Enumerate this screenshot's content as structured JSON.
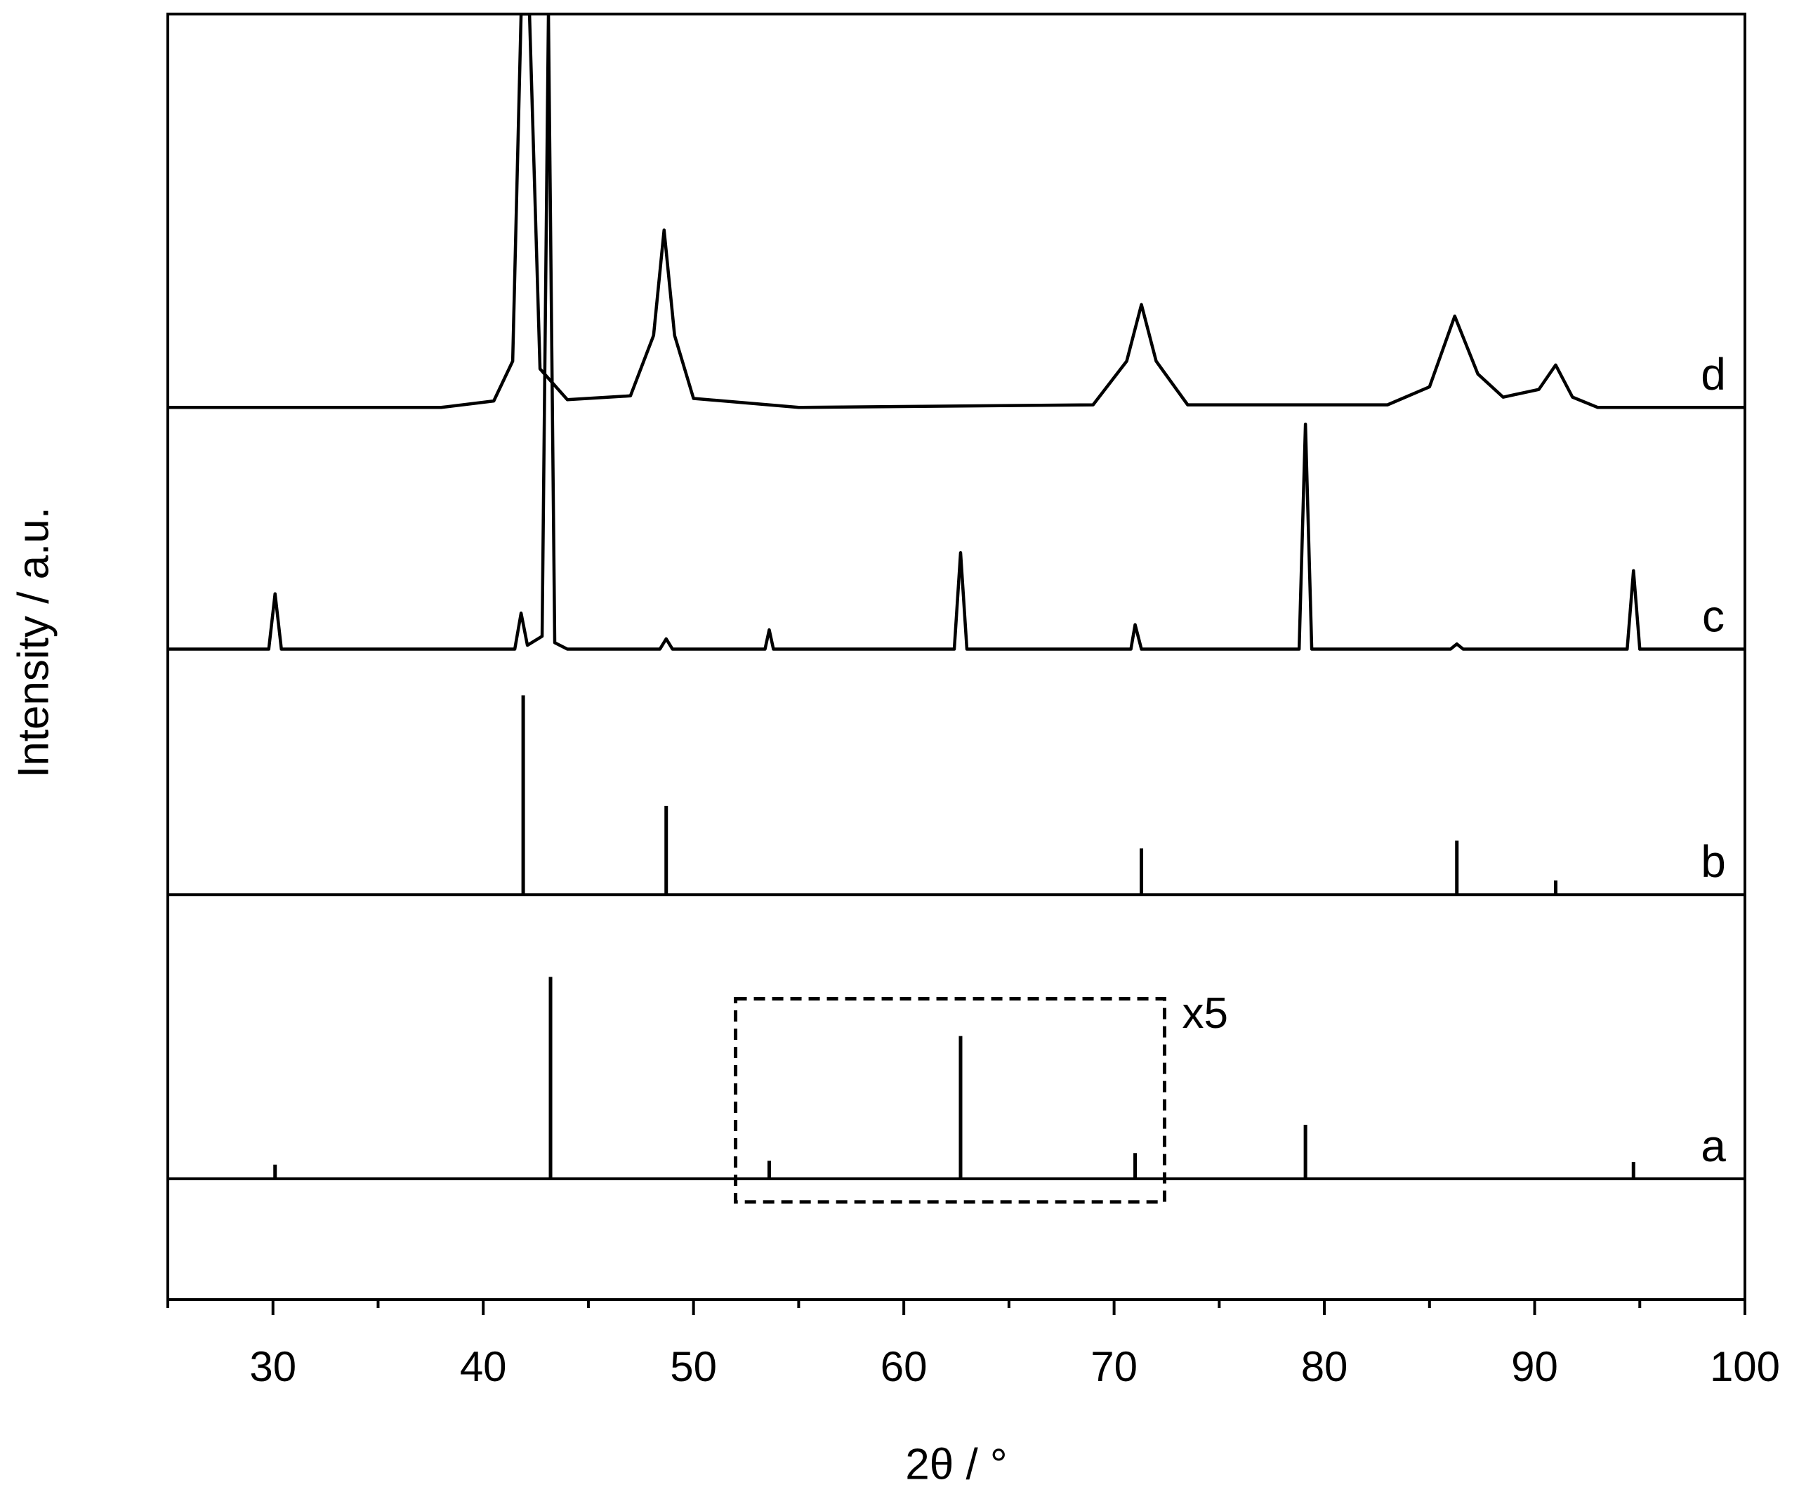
{
  "chart_data": {
    "type": "line",
    "x_label": "2θ / °",
    "y_label": "Intensity / a.u.",
    "xlim": [
      25,
      100
    ],
    "xticks": [
      30,
      40,
      50,
      60,
      70,
      80,
      90,
      100
    ],
    "xminorticks": [
      25,
      35,
      45,
      55,
      65,
      75,
      85,
      95
    ],
    "ylim": [
      0,
      100
    ],
    "series": [
      {
        "name": "d",
        "kind": "curve",
        "color": "#000000",
        "offset": 69.4,
        "x": [
          25,
          38,
          40.5,
          41.4,
          41.8,
          42.2,
          42.7,
          44,
          47,
          48.1,
          48.6,
          49.1,
          50,
          55,
          69,
          70.6,
          71.3,
          72,
          73.5,
          83,
          85,
          86.2,
          87.3,
          88.5,
          90.2,
          91,
          91.8,
          93,
          100
        ],
        "values": [
          0,
          0,
          0.5,
          3.6,
          30.6,
          30.6,
          3,
          0.6,
          0.9,
          5.6,
          13.8,
          5.6,
          0.7,
          0,
          0.2,
          3.6,
          8,
          3.6,
          0.2,
          0.2,
          1.6,
          7.1,
          2.6,
          0.8,
          1.4,
          3.3,
          0.8,
          0,
          0
        ]
      },
      {
        "name": "c",
        "kind": "curve",
        "color": "#000000",
        "offset": 50.6,
        "x": [
          25,
          29.8,
          30.1,
          30.4,
          41.5,
          41.8,
          42.1,
          42.8,
          43.1,
          43.4,
          44,
          48.4,
          48.7,
          49,
          53.4,
          53.6,
          53.8,
          62.4,
          62.7,
          63,
          70.8,
          71,
          71.3,
          78.8,
          79.1,
          79.4,
          86,
          86.3,
          86.6,
          94.4,
          94.7,
          95,
          100
        ],
        "values": [
          0,
          0,
          4.3,
          0,
          0,
          2.8,
          0.3,
          1,
          49.4,
          0.5,
          0,
          0,
          0.8,
          0,
          0,
          1.5,
          0,
          0,
          7.5,
          0,
          0,
          1.9,
          0,
          0,
          17.5,
          0,
          0,
          0.4,
          0,
          0,
          6.1,
          0,
          0
        ]
      },
      {
        "name": "b",
        "kind": "stick",
        "color": "#000000",
        "offset": 31.5,
        "x": [
          41.9,
          48.7,
          71.3,
          86.3,
          91.0
        ],
        "values": [
          15.5,
          6.9,
          3.6,
          4.2,
          1.1
        ]
      },
      {
        "name": "a",
        "kind": "stick",
        "color": "#000000",
        "offset": 9.4,
        "x": [
          30.1,
          43.2,
          53.6,
          62.7,
          71.0,
          79.1,
          94.7
        ],
        "values": [
          1.1,
          15.7,
          1.4,
          11.1,
          2.0,
          4.2,
          1.3
        ]
      }
    ],
    "annotation": {
      "text": "x5",
      "box_x": [
        52,
        72.4
      ],
      "box_y": [
        7.6,
        23.4
      ]
    }
  }
}
